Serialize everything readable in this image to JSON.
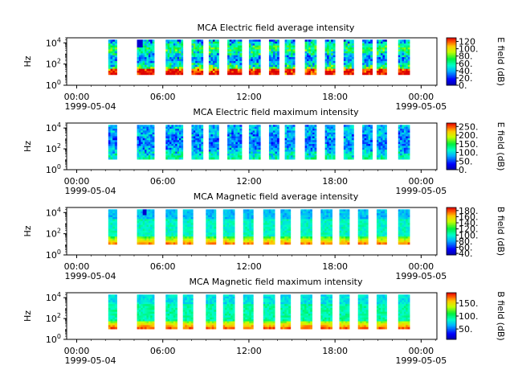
{
  "chart_data": [
    {
      "type": "heatmap",
      "title": "MCA  Electric field average intensity",
      "ylabel": "Hz",
      "y_ticks": [
        {
          "base": "10",
          "exp": "0"
        },
        {
          "base": "10",
          "exp": "2"
        },
        {
          "base": "10",
          "exp": "4"
        }
      ],
      "y_scale": "log",
      "ylim": [
        1,
        30000
      ],
      "x_ticks": [
        "00:00",
        "06:00",
        "12:00",
        "18:00",
        "00:00"
      ],
      "x_tick_hours": [
        0,
        6,
        12,
        18,
        24
      ],
      "x_dates": [
        "1999-05-04",
        "1999-05-05"
      ],
      "xlim_hours": [
        -0.7,
        25.1
      ],
      "colorbar": {
        "label": "E field (dB)",
        "ticks": [
          "0.",
          "20.",
          "40.",
          "60.",
          "80.",
          "100.",
          "120"
        ],
        "tick_values": [
          0,
          20,
          40,
          60,
          80,
          100,
          120
        ],
        "range": [
          0,
          130
        ]
      },
      "segments_hours": [
        [
          2.2,
          2.8
        ],
        [
          4.2,
          5.4
        ],
        [
          6.2,
          7.4
        ],
        [
          8.0,
          8.8
        ],
        [
          9.2,
          9.9
        ],
        [
          10.5,
          11.5
        ],
        [
          12.0,
          12.8
        ],
        [
          13.4,
          14.1
        ],
        [
          14.5,
          15.2
        ],
        [
          15.9,
          16.7
        ],
        [
          17.3,
          18.0
        ],
        [
          18.6,
          19.3
        ],
        [
          19.9,
          20.6
        ],
        [
          20.9,
          21.6
        ],
        [
          22.4,
          23.2
        ]
      ],
      "colormap": "jet-like"
    },
    {
      "type": "heatmap",
      "title": "MCA  Electric field maximum intensity",
      "ylabel": "Hz",
      "y_ticks": [
        {
          "base": "10",
          "exp": "0"
        },
        {
          "base": "10",
          "exp": "2"
        },
        {
          "base": "10",
          "exp": "4"
        }
      ],
      "y_scale": "log",
      "ylim": [
        1,
        30000
      ],
      "x_ticks": [
        "00:00",
        "06:00",
        "12:00",
        "18:00",
        "00:00"
      ],
      "x_tick_hours": [
        0,
        6,
        12,
        18,
        24
      ],
      "x_dates": [
        "1999-05-04",
        "1999-05-05"
      ],
      "xlim_hours": [
        -0.7,
        25.1
      ],
      "colorbar": {
        "label": "E field (dB)",
        "ticks": [
          "0.",
          "50.",
          "100.",
          "150.",
          "200.",
          "250."
        ],
        "tick_values": [
          0,
          50,
          100,
          150,
          200,
          250
        ],
        "range": [
          0,
          270
        ]
      },
      "segments_hours": [
        [
          2.2,
          2.8
        ],
        [
          4.2,
          5.4
        ],
        [
          6.2,
          7.4
        ],
        [
          8.0,
          8.8
        ],
        [
          9.2,
          9.9
        ],
        [
          10.5,
          11.5
        ],
        [
          12.0,
          12.8
        ],
        [
          13.4,
          14.1
        ],
        [
          14.5,
          15.2
        ],
        [
          15.9,
          16.7
        ],
        [
          17.3,
          18.0
        ],
        [
          18.6,
          19.3
        ],
        [
          19.9,
          20.6
        ],
        [
          20.9,
          21.6
        ],
        [
          22.4,
          23.2
        ]
      ],
      "colormap": "jet-like"
    },
    {
      "type": "heatmap",
      "title": "MCA  Magnetic field average intensity",
      "ylabel": "Hz",
      "y_ticks": [
        {
          "base": "10",
          "exp": "0"
        },
        {
          "base": "10",
          "exp": "2"
        },
        {
          "base": "10",
          "exp": "4"
        }
      ],
      "y_scale": "log",
      "ylim": [
        1,
        30000
      ],
      "x_ticks": [
        "00:00",
        "06:00",
        "12:00",
        "18:00",
        "00:00"
      ],
      "x_tick_hours": [
        0,
        6,
        12,
        18,
        24
      ],
      "x_dates": [
        "1999-05-04",
        "1999-05-05"
      ],
      "xlim_hours": [
        -0.7,
        25.1
      ],
      "colorbar": {
        "label": "B field (dB)",
        "ticks": [
          "40.",
          "60.",
          "80.",
          "100.",
          "120.",
          "140.",
          "160.",
          "180."
        ],
        "tick_values": [
          40,
          60,
          80,
          100,
          120,
          140,
          160,
          180
        ],
        "range": [
          35,
          190
        ]
      },
      "segments_hours": [
        [
          2.2,
          2.8
        ],
        [
          4.2,
          5.4
        ],
        [
          6.2,
          7.0
        ],
        [
          7.4,
          8.1
        ],
        [
          9.0,
          9.7
        ],
        [
          10.2,
          11.0
        ],
        [
          11.6,
          12.3
        ],
        [
          13.0,
          13.8
        ],
        [
          14.2,
          14.9
        ],
        [
          15.6,
          16.4
        ],
        [
          17.0,
          17.8
        ],
        [
          18.3,
          19.0
        ],
        [
          19.6,
          20.3
        ],
        [
          20.9,
          21.6
        ],
        [
          22.4,
          23.2
        ]
      ],
      "colormap": "jet-like"
    },
    {
      "type": "heatmap",
      "title": "MCA  Magnetic field maximum intensity",
      "ylabel": "Hz",
      "y_ticks": [
        {
          "base": "10",
          "exp": "0"
        },
        {
          "base": "10",
          "exp": "2"
        },
        {
          "base": "10",
          "exp": "4"
        }
      ],
      "y_scale": "log",
      "ylim": [
        1,
        30000
      ],
      "x_ticks": [
        "00:00",
        "06:00",
        "12:00",
        "18:00",
        "00:00"
      ],
      "x_tick_hours": [
        0,
        6,
        12,
        18,
        24
      ],
      "x_dates": [
        "1999-05-04",
        "1999-05-05"
      ],
      "xlim_hours": [
        -0.7,
        25.1
      ],
      "colorbar": {
        "label": "B field (dB)",
        "ticks": [
          "50.",
          "100.",
          "150."
        ],
        "tick_values": [
          50,
          100,
          150
        ],
        "range": [
          10,
          190
        ]
      },
      "segments_hours": [
        [
          2.2,
          2.8
        ],
        [
          4.2,
          5.4
        ],
        [
          6.2,
          7.0
        ],
        [
          7.4,
          8.1
        ],
        [
          9.0,
          9.7
        ],
        [
          10.2,
          11.0
        ],
        [
          11.6,
          12.3
        ],
        [
          13.0,
          13.8
        ],
        [
          14.2,
          14.9
        ],
        [
          15.6,
          16.4
        ],
        [
          17.0,
          17.8
        ],
        [
          18.3,
          19.0
        ],
        [
          19.6,
          20.3
        ],
        [
          20.9,
          21.6
        ],
        [
          22.4,
          23.2
        ]
      ],
      "colormap": "jet-like"
    }
  ]
}
